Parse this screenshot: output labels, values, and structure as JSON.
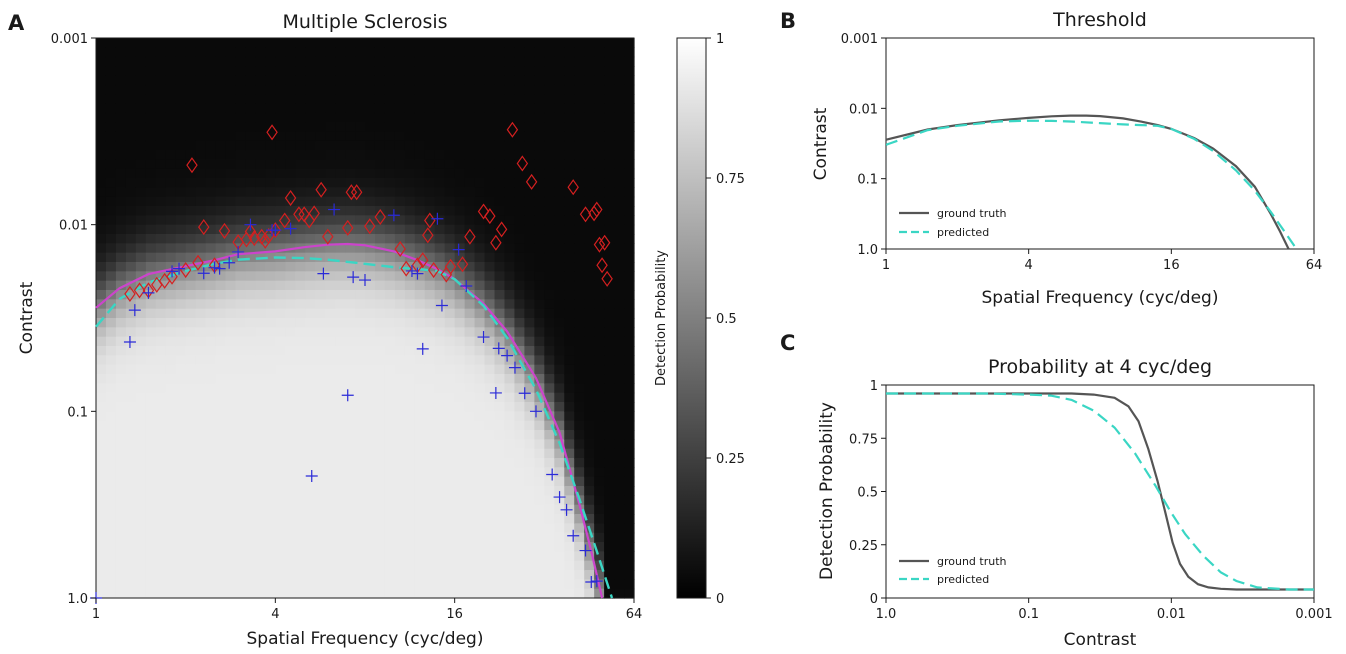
{
  "figure": {
    "panels": [
      {
        "letter": "A",
        "title": "Multiple Sclerosis"
      },
      {
        "letter": "B",
        "title": "Threshold"
      },
      {
        "letter": "C",
        "title": "Probability at 4 cyc/deg"
      }
    ]
  },
  "chart_data": [
    {
      "id": "A",
      "type": "heatmap",
      "title": "Multiple Sclerosis",
      "xlabel": "Spatial Frequency (cyc/deg)",
      "ylabel": "Contrast",
      "x_scale": "log2",
      "y_scale": "log10",
      "y_inverted": true,
      "xlim": [
        1,
        64
      ],
      "ylim": [
        1.0,
        0.001
      ],
      "xticks": [
        1,
        4,
        16,
        64
      ],
      "xticklabels": [
        "1",
        "4",
        "16",
        "64"
      ],
      "yticks": [
        1.0,
        0.1,
        0.01,
        0.001
      ],
      "yticklabels": [
        "1.0",
        "0.1",
        "0.01",
        "0.001"
      ],
      "colorbar": {
        "label": "Detection Probability",
        "ticks": [
          0,
          0.25,
          0.5,
          0.75,
          1
        ],
        "ticklabels": [
          "0",
          "0.25",
          "0.5",
          "0.75",
          "1"
        ],
        "cmap": "gray"
      },
      "colors": {
        "ground_truth": "#cc44cc",
        "predicted": "#3ad6c4",
        "hits": "#d42020",
        "misses": "#2a2ad8"
      },
      "series": [
        {
          "key": "ground_truth",
          "style": "solid",
          "x": [
            1,
            1.2,
            1.5,
            2,
            2.5,
            3,
            4,
            5,
            6,
            7,
            8,
            10,
            12,
            14,
            16,
            20,
            24,
            30,
            36,
            42,
            46,
            50
          ],
          "y": [
            0.0279,
            0.0219,
            0.0184,
            0.0167,
            0.0155,
            0.0144,
            0.0139,
            0.0132,
            0.0128,
            0.0127,
            0.0129,
            0.0139,
            0.0155,
            0.0173,
            0.0196,
            0.0265,
            0.0373,
            0.0664,
            0.13,
            0.316,
            0.562,
            1.0
          ]
        },
        {
          "key": "predicted",
          "style": "dashed",
          "x": [
            1,
            1.2,
            1.5,
            2,
            2.5,
            3,
            4,
            5,
            6,
            8,
            10,
            12,
            14,
            16,
            20,
            24,
            30,
            36,
            42,
            48,
            54
          ],
          "y": [
            0.0352,
            0.025,
            0.0204,
            0.0177,
            0.0162,
            0.0154,
            0.015,
            0.0151,
            0.0154,
            0.0162,
            0.0169,
            0.0173,
            0.0177,
            0.0196,
            0.0272,
            0.0404,
            0.0764,
            0.148,
            0.296,
            0.562,
            1.0
          ]
        },
        {
          "key": "hits",
          "marker": "diamond",
          "x": [
            1.3,
            1.4,
            1.5,
            1.6,
            1.7,
            1.8,
            2.0,
            2.1,
            2.2,
            2.3,
            2.5,
            2.7,
            3.0,
            3.2,
            3.3,
            3.4,
            3.6,
            3.7,
            3.8,
            3.9,
            4.0,
            4.3,
            4.5,
            4.8,
            5.0,
            5.2,
            5.4,
            5.7,
            6.0,
            7.0,
            7.2,
            7.5,
            8.3,
            9.0,
            10.5,
            11.0,
            12.0,
            12.5,
            13.0,
            13.2,
            13.6,
            15.0,
            15.5,
            17.0,
            18.0,
            20.0,
            21.0,
            22.0,
            23.0,
            25.0,
            27.0,
            29.0,
            40.0,
            44.0,
            47.0,
            48.0,
            49.0,
            50.0,
            51.0,
            52.0
          ],
          "y": [
            0.0235,
            0.0225,
            0.0225,
            0.021,
            0.02,
            0.019,
            0.0175,
            0.0048,
            0.016,
            0.0103,
            0.0165,
            0.0108,
            0.0124,
            0.012,
            0.0109,
            0.0118,
            0.0116,
            0.0122,
            0.0115,
            0.0032,
            0.0107,
            0.0095,
            0.0072,
            0.0088,
            0.0088,
            0.0095,
            0.0087,
            0.0065,
            0.0116,
            0.0104,
            0.0067,
            0.0067,
            0.0102,
            0.0091,
            0.0135,
            0.0172,
            0.0165,
            0.0155,
            0.0114,
            0.0095,
            0.0175,
            0.0185,
            0.0168,
            0.0163,
            0.0116,
            0.0085,
            0.009,
            0.0125,
            0.0106,
            0.0031,
            0.0047,
            0.0059,
            0.0063,
            0.0088,
            0.0087,
            0.0083,
            0.0128,
            0.0165,
            0.0125,
            0.0195
          ]
        },
        {
          "key": "misses",
          "marker": "plus",
          "x": [
            1.0,
            1.3,
            1.35,
            1.5,
            1.8,
            1.9,
            2.3,
            2.5,
            2.6,
            2.8,
            3.0,
            3.3,
            3.9,
            4.0,
            4.5,
            5.3,
            5.8,
            6.3,
            7.0,
            7.3,
            8.0,
            10.0,
            11.5,
            12.0,
            12.5,
            14.0,
            14.5,
            16.5,
            17.5,
            20.0,
            22.0,
            22.5,
            24.0,
            25.5,
            27.5,
            30.0,
            34.0,
            36.0,
            38.0,
            40.0,
            44.0,
            46.0,
            48.0
          ],
          "y": [
            1.0,
            0.0425,
            0.0287,
            0.0232,
            0.0178,
            0.0172,
            0.0182,
            0.017,
            0.0172,
            0.016,
            0.014,
            0.01,
            0.0107,
            0.0107,
            0.0105,
            0.222,
            0.0183,
            0.0083,
            0.082,
            0.0191,
            0.0198,
            0.0089,
            0.0177,
            0.0183,
            0.0463,
            0.0093,
            0.0271,
            0.0136,
            0.0213,
            0.04,
            0.0797,
            0.046,
            0.0503,
            0.0583,
            0.08,
            0.1,
            0.218,
            0.288,
            0.337,
            0.464,
            0.557,
            0.821,
            0.812
          ]
        }
      ]
    },
    {
      "id": "B",
      "type": "line",
      "title": "Threshold",
      "xlabel": "Spatial Frequency (cyc/deg)",
      "ylabel": "Contrast",
      "x_scale": "log2",
      "y_scale": "log10",
      "y_inverted": true,
      "xlim": [
        1,
        64
      ],
      "ylim": [
        1.0,
        0.001
      ],
      "xticks": [
        1,
        4,
        16,
        64
      ],
      "xticklabels": [
        "1",
        "4",
        "16",
        "64"
      ],
      "yticks": [
        1.0,
        0.1,
        0.01,
        0.001
      ],
      "yticklabels": [
        "1.0",
        "0.1",
        "0.01",
        "0.001"
      ],
      "legend": "lower-left",
      "series": [
        {
          "name": "ground truth",
          "color": "#555555",
          "style": "solid",
          "x": [
            1,
            1.5,
            2,
            3,
            4,
            5,
            6,
            7,
            8,
            10,
            12,
            14,
            16,
            20,
            24,
            30,
            36,
            42,
            46,
            50
          ],
          "y": [
            0.0279,
            0.02,
            0.0173,
            0.0148,
            0.0137,
            0.013,
            0.0127,
            0.0127,
            0.0129,
            0.0139,
            0.0155,
            0.0173,
            0.0196,
            0.0265,
            0.0373,
            0.0664,
            0.13,
            0.316,
            0.562,
            1.0
          ]
        },
        {
          "name": "predicted",
          "color": "#3ad6c4",
          "style": "dashed",
          "x": [
            1,
            1.5,
            2,
            3,
            4,
            5,
            6,
            8,
            10,
            12,
            14,
            16,
            20,
            24,
            30,
            36,
            42,
            48,
            54
          ],
          "y": [
            0.033,
            0.0204,
            0.0177,
            0.0154,
            0.015,
            0.0151,
            0.0154,
            0.0162,
            0.0169,
            0.0173,
            0.0177,
            0.0196,
            0.0272,
            0.0404,
            0.0764,
            0.148,
            0.296,
            0.562,
            1.0
          ]
        }
      ]
    },
    {
      "id": "C",
      "type": "line",
      "title": "Probability at 4 cyc/deg",
      "xlabel": "Contrast",
      "ylabel": "Detection Probability",
      "x_scale": "log10",
      "x_inverted": true,
      "xlim": [
        1.0,
        0.001
      ],
      "ylim": [
        0,
        1
      ],
      "xticks": [
        1.0,
        0.1,
        0.01,
        0.001
      ],
      "xticklabels": [
        "1.0",
        "0.1",
        "0.01",
        "0.001"
      ],
      "yticks": [
        0,
        0.25,
        0.5,
        0.75,
        1
      ],
      "yticklabels": [
        "0",
        "0.25",
        "0.5",
        "0.75",
        "1"
      ],
      "legend": "lower-left",
      "series": [
        {
          "name": "ground truth",
          "color": "#555555",
          "style": "solid",
          "x": [
            1.0,
            0.1,
            0.05,
            0.035,
            0.025,
            0.02,
            0.017,
            0.0145,
            0.0125,
            0.011,
            0.0098,
            0.0087,
            0.0076,
            0.0065,
            0.0055,
            0.0045,
            0.0035,
            0.0025,
            0.001
          ],
          "y": [
            0.96,
            0.96,
            0.96,
            0.955,
            0.94,
            0.9,
            0.83,
            0.7,
            0.55,
            0.4,
            0.26,
            0.16,
            0.1,
            0.065,
            0.05,
            0.043,
            0.04,
            0.04,
            0.04
          ]
        },
        {
          "name": "predicted",
          "color": "#3ad6c4",
          "style": "dashed",
          "x": [
            1.0,
            0.2,
            0.1,
            0.07,
            0.05,
            0.035,
            0.025,
            0.018,
            0.013,
            0.01,
            0.008,
            0.006,
            0.0045,
            0.0035,
            0.0025,
            0.0015,
            0.001
          ],
          "y": [
            0.96,
            0.96,
            0.955,
            0.95,
            0.93,
            0.88,
            0.8,
            0.68,
            0.53,
            0.4,
            0.3,
            0.2,
            0.12,
            0.08,
            0.05,
            0.04,
            0.04
          ]
        }
      ]
    }
  ]
}
